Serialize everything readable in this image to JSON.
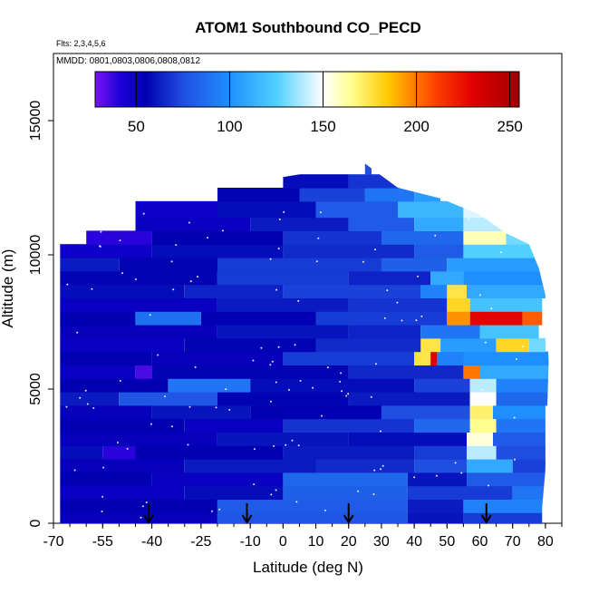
{
  "chart_data": {
    "type": "heatmap",
    "title": "ATOM1 Southbound CO_PECD",
    "annotations": {
      "flights": "Flts: 2,3,4,5,6",
      "dates": "MMDD: 0801,0803,0806,0808,0812"
    },
    "xlabel": "Latitude (deg N)",
    "ylabel": "Altitude (m)",
    "xlim": [
      -70,
      85
    ],
    "ylim": [
      0,
      17500
    ],
    "x_ticks": [
      -70,
      -55,
      -40,
      -25,
      -10,
      0,
      10,
      20,
      30,
      40,
      50,
      60,
      70,
      80
    ],
    "x_tick_labels": [
      "-70",
      "-55",
      "-40",
      "-25",
      "-10",
      "0",
      "10",
      "20",
      "30",
      "40",
      "50",
      "60",
      "70",
      "80"
    ],
    "y_ticks": [
      0,
      5000,
      10000,
      15000
    ],
    "y_tick_labels": [
      "0",
      "5000",
      "10000",
      "15000"
    ],
    "colorbar": {
      "range": [
        28,
        255
      ],
      "ticks": [
        50,
        100,
        150,
        200,
        250
      ],
      "tick_labels": [
        "50",
        "100",
        "150",
        "200",
        "250"
      ],
      "stops": [
        {
          "value": 28,
          "color": "#7a14ef"
        },
        {
          "value": 42,
          "color": "#1a00d8"
        },
        {
          "value": 55,
          "color": "#0000b2"
        },
        {
          "value": 75,
          "color": "#1f4ee0"
        },
        {
          "value": 100,
          "color": "#1f8fff"
        },
        {
          "value": 125,
          "color": "#4fd0ff"
        },
        {
          "value": 150,
          "color": "#ffffff"
        },
        {
          "value": 165,
          "color": "#ffff90"
        },
        {
          "value": 185,
          "color": "#ffc800"
        },
        {
          "value": 210,
          "color": "#ff4000"
        },
        {
          "value": 230,
          "color": "#e00000"
        },
        {
          "value": 255,
          "color": "#a00000"
        }
      ]
    },
    "arrows_latitude": [
      -41,
      -11,
      20,
      62
    ],
    "curtain_top": [
      [
        -68,
        10500
      ],
      [
        -60,
        11000
      ],
      [
        -45,
        12000
      ],
      [
        -20,
        12500
      ],
      [
        0,
        12900
      ],
      [
        25,
        13400
      ],
      [
        35,
        12500
      ],
      [
        48,
        12100
      ],
      [
        60,
        11500
      ],
      [
        68,
        10800
      ],
      [
        75,
        10400
      ],
      [
        78,
        9500
      ],
      [
        80,
        8500
      ],
      [
        81,
        6000
      ],
      [
        80,
        2000
      ],
      [
        79,
        600
      ]
    ],
    "cell_rows": [
      {
        "alt": [
          0,
          400
        ],
        "segments": [
          [
            -68,
            -20,
            52
          ],
          [
            -20,
            38,
            78
          ],
          [
            38,
            55,
            60
          ],
          [
            55,
            80,
            70
          ]
        ]
      },
      {
        "alt": [
          400,
          900
        ],
        "segments": [
          [
            -68,
            -20,
            55
          ],
          [
            -20,
            38,
            80
          ],
          [
            38,
            55,
            62
          ],
          [
            55,
            80,
            95
          ]
        ]
      },
      {
        "alt": [
          900,
          1400
        ],
        "segments": [
          [
            -68,
            -30,
            50
          ],
          [
            -30,
            0,
            58
          ],
          [
            0,
            38,
            82
          ],
          [
            38,
            70,
            70
          ],
          [
            70,
            80,
            90
          ]
        ]
      },
      {
        "alt": [
          1400,
          1900
        ],
        "segments": [
          [
            -68,
            -40,
            55
          ],
          [
            -40,
            0,
            50
          ],
          [
            0,
            38,
            85
          ],
          [
            38,
            56,
            60
          ],
          [
            56,
            80,
            80
          ]
        ]
      },
      {
        "alt": [
          1900,
          2400
        ],
        "segments": [
          [
            -68,
            -30,
            52
          ],
          [
            -30,
            10,
            62
          ],
          [
            10,
            40,
            66
          ],
          [
            40,
            56,
            75
          ],
          [
            56,
            70,
            110
          ],
          [
            70,
            80,
            72
          ]
        ]
      },
      {
        "alt": [
          2400,
          2900
        ],
        "segments": [
          [
            -68,
            -55,
            58
          ],
          [
            -55,
            -45,
            40
          ],
          [
            -45,
            0,
            55
          ],
          [
            0,
            40,
            62
          ],
          [
            40,
            56,
            70
          ],
          [
            56,
            65,
            140
          ],
          [
            65,
            80,
            75
          ]
        ]
      },
      {
        "alt": [
          2900,
          3400
        ],
        "segments": [
          [
            -68,
            -20,
            52
          ],
          [
            -20,
            20,
            60
          ],
          [
            20,
            56,
            58
          ],
          [
            56,
            64,
            155
          ],
          [
            64,
            80,
            80
          ]
        ]
      },
      {
        "alt": [
          3400,
          3900
        ],
        "segments": [
          [
            -68,
            -30,
            55
          ],
          [
            -30,
            0,
            50
          ],
          [
            0,
            40,
            68
          ],
          [
            40,
            57,
            85
          ],
          [
            57,
            65,
            165
          ],
          [
            65,
            80,
            90
          ]
        ]
      },
      {
        "alt": [
          3900,
          4400
        ],
        "segments": [
          [
            -68,
            -40,
            52
          ],
          [
            -40,
            -10,
            60
          ],
          [
            -10,
            30,
            55
          ],
          [
            30,
            57,
            75
          ],
          [
            57,
            64,
            170
          ],
          [
            64,
            80,
            100
          ]
        ]
      },
      {
        "alt": [
          4400,
          4900
        ],
        "segments": [
          [
            -68,
            -50,
            62
          ],
          [
            -50,
            -20,
            78
          ],
          [
            -20,
            20,
            56
          ],
          [
            20,
            57,
            62
          ],
          [
            57,
            65,
            150
          ],
          [
            65,
            81,
            85
          ]
        ]
      },
      {
        "alt": [
          4900,
          5400
        ],
        "segments": [
          [
            -68,
            -35,
            55
          ],
          [
            -35,
            -10,
            90
          ],
          [
            -10,
            40,
            58
          ],
          [
            40,
            57,
            72
          ],
          [
            57,
            65,
            140
          ],
          [
            65,
            81,
            95
          ]
        ]
      },
      {
        "alt": [
          5400,
          5900
        ],
        "segments": [
          [
            -68,
            -45,
            50
          ],
          [
            -45,
            -40,
            35
          ],
          [
            -40,
            20,
            56
          ],
          [
            20,
            55,
            65
          ],
          [
            55,
            60,
            200
          ],
          [
            60,
            81,
            110
          ]
        ]
      },
      {
        "alt": [
          5900,
          6400
        ],
        "segments": [
          [
            -68,
            -40,
            55
          ],
          [
            -40,
            0,
            52
          ],
          [
            0,
            40,
            70
          ],
          [
            40,
            45,
            175
          ],
          [
            45,
            47,
            230
          ],
          [
            47,
            55,
            95
          ],
          [
            55,
            81,
            100
          ]
        ]
      },
      {
        "alt": [
          6400,
          6900
        ],
        "segments": [
          [
            -68,
            -30,
            50
          ],
          [
            -30,
            10,
            56
          ],
          [
            10,
            42,
            66
          ],
          [
            42,
            48,
            175
          ],
          [
            48,
            65,
            105
          ],
          [
            65,
            75,
            180
          ],
          [
            75,
            80,
            130
          ]
        ]
      },
      {
        "alt": [
          6900,
          7400
        ],
        "segments": [
          [
            -68,
            -20,
            52
          ],
          [
            -20,
            20,
            60
          ],
          [
            20,
            42,
            64
          ],
          [
            42,
            60,
            90
          ],
          [
            60,
            78,
            120
          ]
        ]
      },
      {
        "alt": [
          7400,
          7900
        ],
        "segments": [
          [
            -68,
            -45,
            55
          ],
          [
            -45,
            -25,
            88
          ],
          [
            -25,
            10,
            54
          ],
          [
            10,
            50,
            70
          ],
          [
            50,
            57,
            195
          ],
          [
            57,
            73,
            228
          ],
          [
            73,
            79,
            205
          ]
        ]
      },
      {
        "alt": [
          7900,
          8400
        ],
        "segments": [
          [
            -68,
            -20,
            50
          ],
          [
            -20,
            20,
            62
          ],
          [
            20,
            50,
            68
          ],
          [
            50,
            57,
            180
          ],
          [
            57,
            79,
            120
          ]
        ]
      },
      {
        "alt": [
          8400,
          8900
        ],
        "segments": [
          [
            -68,
            -30,
            58
          ],
          [
            -30,
            0,
            64
          ],
          [
            0,
            42,
            72
          ],
          [
            42,
            50,
            95
          ],
          [
            50,
            56,
            175
          ],
          [
            56,
            80,
            110
          ]
        ]
      },
      {
        "alt": [
          8900,
          9400
        ],
        "segments": [
          [
            -68,
            -20,
            56
          ],
          [
            -20,
            20,
            70
          ],
          [
            20,
            45,
            64
          ],
          [
            45,
            55,
            110
          ],
          [
            55,
            80,
            100
          ]
        ]
      },
      {
        "alt": [
          9400,
          9900
        ],
        "segments": [
          [
            -68,
            -50,
            62
          ],
          [
            -50,
            -20,
            56
          ],
          [
            -20,
            30,
            70
          ],
          [
            30,
            50,
            82
          ],
          [
            50,
            80,
            105
          ]
        ]
      },
      {
        "alt": [
          9900,
          10400
        ],
        "segments": [
          [
            -68,
            -40,
            48
          ],
          [
            -40,
            0,
            58
          ],
          [
            0,
            40,
            66
          ],
          [
            40,
            55,
            80
          ],
          [
            55,
            78,
            125
          ]
        ]
      },
      {
        "alt": [
          10400,
          10900
        ],
        "segments": [
          [
            -60,
            -40,
            40
          ],
          [
            -40,
            0,
            55
          ],
          [
            0,
            30,
            68
          ],
          [
            30,
            55,
            85
          ],
          [
            55,
            68,
            160
          ],
          [
            68,
            75,
            130
          ]
        ]
      },
      {
        "alt": [
          10900,
          11400
        ],
        "segments": [
          [
            -45,
            -10,
            50
          ],
          [
            -10,
            20,
            62
          ],
          [
            20,
            40,
            80
          ],
          [
            40,
            55,
            110
          ],
          [
            55,
            68,
            140
          ]
        ]
      },
      {
        "alt": [
          11400,
          12000
        ],
        "segments": [
          [
            -45,
            -20,
            48
          ],
          [
            -20,
            10,
            58
          ],
          [
            10,
            35,
            80
          ],
          [
            35,
            55,
            115
          ],
          [
            55,
            60,
            145
          ]
        ]
      },
      {
        "alt": [
          12000,
          12500
        ],
        "segments": [
          [
            -20,
            5,
            56
          ],
          [
            5,
            25,
            72
          ],
          [
            25,
            40,
            90
          ],
          [
            40,
            48,
            105
          ]
        ]
      },
      {
        "alt": [
          12500,
          13000
        ],
        "segments": [
          [
            0,
            20,
            58
          ],
          [
            20,
            37,
            68
          ]
        ]
      },
      {
        "alt": [
          13000,
          13400
        ],
        "segments": [
          [
            25,
            27,
            75
          ]
        ]
      }
    ]
  }
}
